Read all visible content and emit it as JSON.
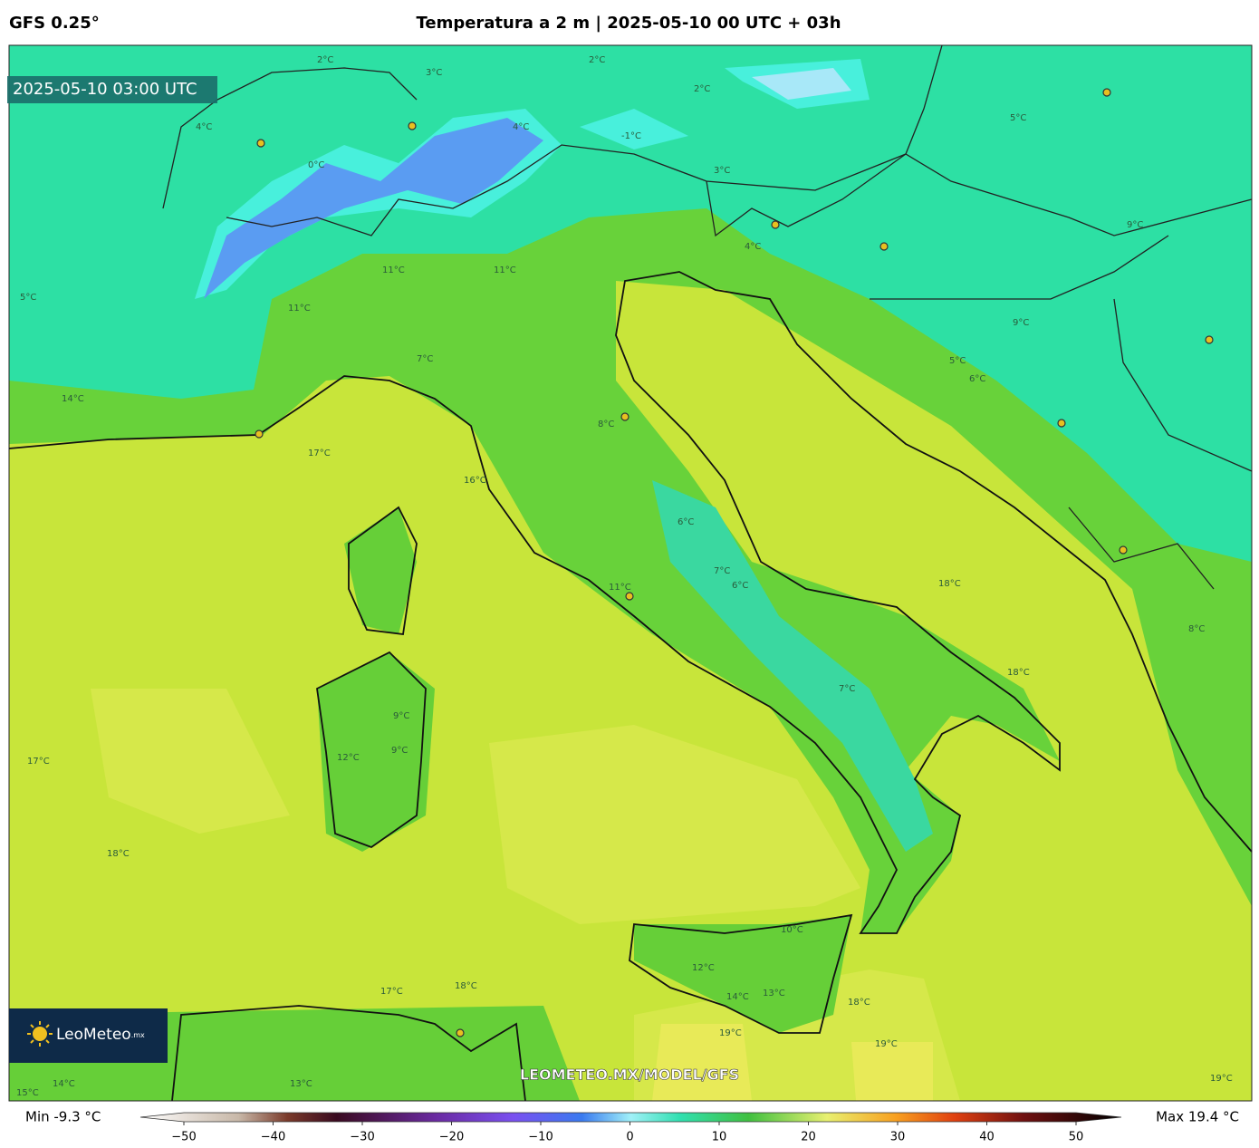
{
  "header": {
    "model": "GFS 0.25°",
    "title": "Temperatura a 2 m | 2025-05-10 00 UTC + 03h"
  },
  "map": {
    "timestamp": "2025-05-10 03:00 UTC",
    "logo": {
      "name": "LeoMeteo",
      "suffix": ".mx"
    },
    "watermark": "LEOMETEO.MX/MODEL/GFS",
    "contour_labels": [
      "2°C",
      "3°C",
      "2°C",
      "0°C",
      "-1°C",
      "2°C",
      "4°C",
      "4°C",
      "5°C",
      "3°C",
      "11°C",
      "11°C",
      "11°C",
      "8°C",
      "7°C",
      "14°C",
      "17°C",
      "16°C",
      "6°C",
      "7°C",
      "6°C",
      "11°C",
      "18°C",
      "18°C",
      "7°C",
      "9°C",
      "12°C",
      "9°C",
      "18°C",
      "12°C",
      "14°C",
      "13°C",
      "10°C",
      "18°C",
      "19°C",
      "19°C",
      "17°C",
      "18°C",
      "15°C",
      "14°C",
      "13°C",
      "9°C",
      "9°C",
      "6°C",
      "5°C",
      "8°C",
      "17°C",
      "19°C",
      "4°C",
      "5°C"
    ]
  },
  "colorbar": {
    "min_label": "Min -9.3 °C",
    "max_label": "Max 19.4 °C",
    "range": [
      -50,
      50
    ],
    "ticks": [
      {
        "value": -50,
        "label": "−50"
      },
      {
        "value": -40,
        "label": "−40"
      },
      {
        "value": -30,
        "label": "−30"
      },
      {
        "value": -20,
        "label": "−20"
      },
      {
        "value": -10,
        "label": "−10"
      },
      0,
      10,
      20,
      30,
      40,
      50
    ]
  }
}
